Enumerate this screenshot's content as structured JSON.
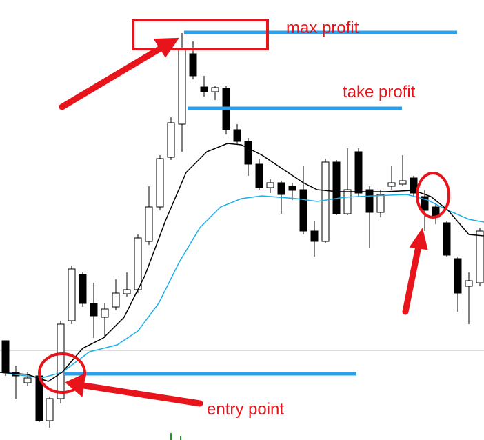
{
  "annotations": {
    "max_profit": "max profit",
    "take_profit": "take profit",
    "entry_point": "entry point"
  }
}
